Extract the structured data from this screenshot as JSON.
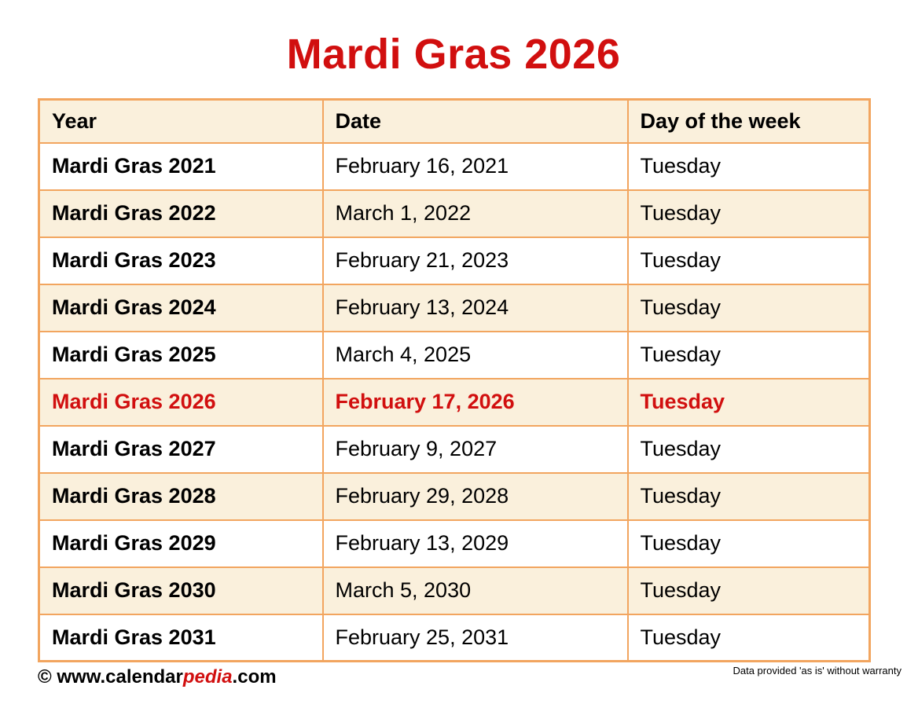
{
  "title": "Mardi Gras 2026",
  "colors": {
    "accent_red": "#d10f0f",
    "row_cream": "#faf0dc",
    "border_orange": "#f2a55f",
    "text_black": "#000000",
    "page_white": "#ffffff"
  },
  "table": {
    "headers": [
      "Year",
      "Date",
      "Day of the week"
    ],
    "rows": [
      {
        "year": "Mardi Gras 2021",
        "date": "February 16, 2021",
        "day": "Tuesday",
        "highlight": false
      },
      {
        "year": "Mardi Gras 2022",
        "date": "March 1, 2022",
        "day": "Tuesday",
        "highlight": false
      },
      {
        "year": "Mardi Gras 2023",
        "date": "February 21, 2023",
        "day": "Tuesday",
        "highlight": false
      },
      {
        "year": "Mardi Gras 2024",
        "date": "February 13, 2024",
        "day": "Tuesday",
        "highlight": false
      },
      {
        "year": "Mardi Gras 2025",
        "date": "March 4, 2025",
        "day": "Tuesday",
        "highlight": false
      },
      {
        "year": "Mardi Gras 2026",
        "date": "February 17, 2026",
        "day": "Tuesday",
        "highlight": true
      },
      {
        "year": "Mardi Gras 2027",
        "date": "February 9, 2027",
        "day": "Tuesday",
        "highlight": false
      },
      {
        "year": "Mardi Gras 2028",
        "date": "February 29, 2028",
        "day": "Tuesday",
        "highlight": false
      },
      {
        "year": "Mardi Gras 2029",
        "date": "February 13, 2029",
        "day": "Tuesday",
        "highlight": false
      },
      {
        "year": "Mardi Gras 2030",
        "date": "March 5, 2030",
        "day": "Tuesday",
        "highlight": false
      },
      {
        "year": "Mardi Gras 2031",
        "date": "February 25, 2031",
        "day": "Tuesday",
        "highlight": false
      }
    ]
  },
  "footer": {
    "copyright_prefix": "© www.calendar",
    "copyright_accent": "pedia",
    "copyright_suffix": ".com",
    "disclaimer": "Data provided 'as is' without warranty"
  }
}
